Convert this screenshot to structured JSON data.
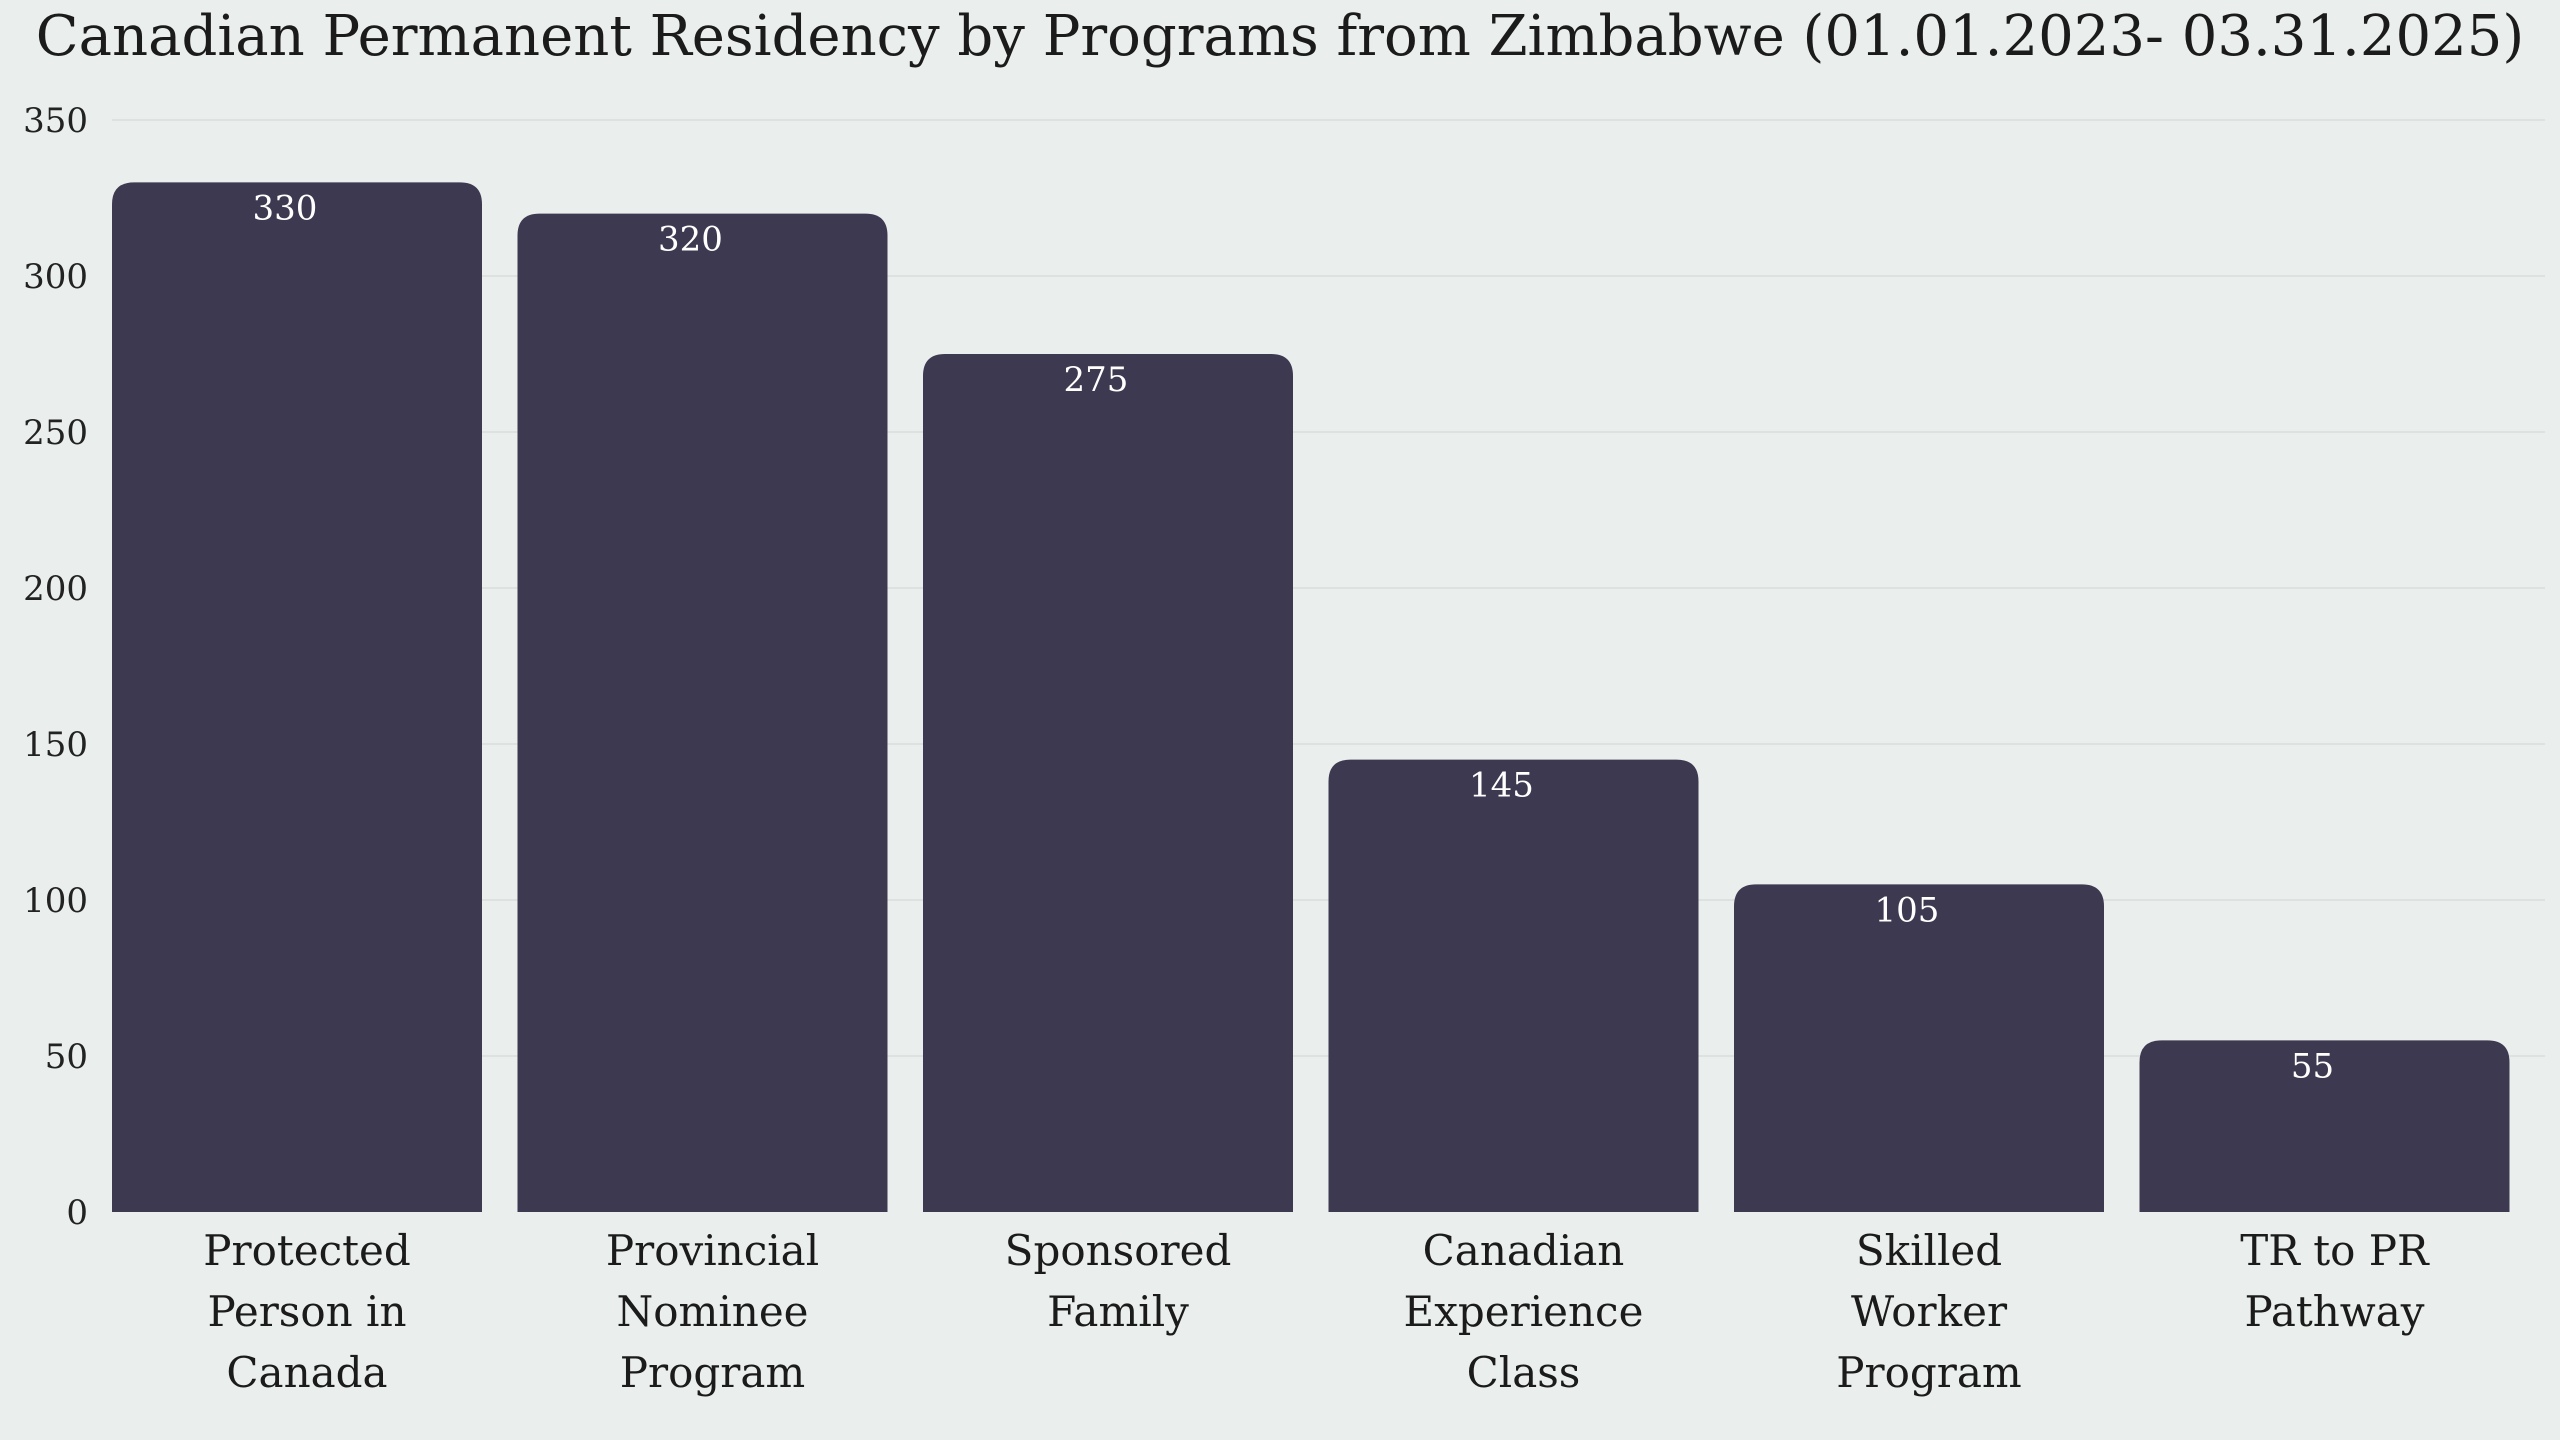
{
  "chart_data": {
    "type": "bar",
    "title": "Canadian Permanent Residency by Programs from Zimbabwe (01.01.2023- 03.31.2025)",
    "xlabel": "",
    "ylabel": "",
    "categories": [
      [
        "Protected",
        "Person in",
        "Canada"
      ],
      [
        "Provincial",
        "Nominee",
        "Program"
      ],
      [
        "Sponsored",
        "Family"
      ],
      [
        "Canadian",
        "Experience",
        "Class"
      ],
      [
        "Skilled",
        "Worker",
        "Program"
      ],
      [
        "TR to PR",
        "Pathway"
      ]
    ],
    "values": [
      330,
      320,
      275,
      145,
      105,
      55
    ],
    "ylim": [
      0,
      350
    ],
    "yticks": [
      0,
      50,
      100,
      150,
      200,
      250,
      300,
      350
    ],
    "grid": true,
    "legend": "none",
    "bar_color": "#3d3950",
    "data_label_color": "#ffffff",
    "background_color": "#eaeeed"
  }
}
